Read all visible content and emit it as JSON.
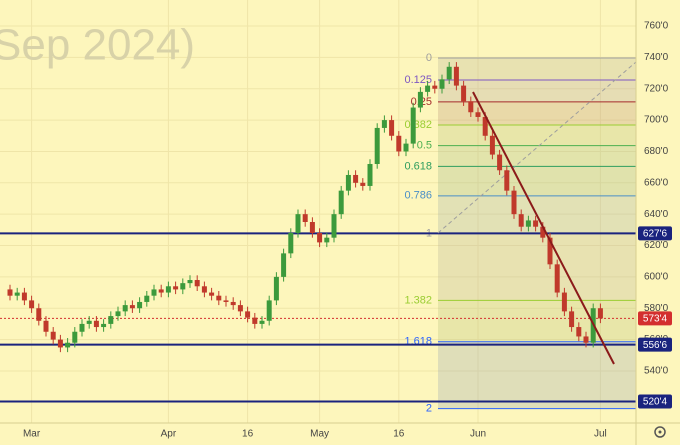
{
  "chart_data": {
    "type": "candlestick",
    "watermark": "Sep 2024)",
    "background": "#fdf6bc",
    "up_color": "#3c9a3c",
    "down_color": "#c0392b",
    "grid": true,
    "categories": [
      null,
      null,
      null,
      "Mar",
      null,
      null,
      null,
      null,
      null,
      null,
      null,
      null,
      null,
      null,
      null,
      null,
      null,
      null,
      null,
      null,
      null,
      null,
      "Apr",
      null,
      null,
      null,
      null,
      null,
      null,
      null,
      null,
      null,
      null,
      "16",
      null,
      null,
      null,
      null,
      null,
      null,
      null,
      null,
      null,
      "May",
      null,
      null,
      null,
      null,
      null,
      null,
      null,
      null,
      null,
      null,
      "16",
      null,
      null,
      null,
      null,
      null,
      null,
      null,
      null,
      null,
      null,
      "Jun",
      null,
      null,
      null,
      null,
      null,
      null,
      null,
      null,
      null,
      null,
      null,
      null,
      null,
      null,
      null,
      null,
      "Jul"
    ],
    "open": [
      592,
      588,
      590,
      585,
      580,
      572,
      565,
      560,
      555,
      558,
      565,
      570,
      572,
      568,
      570,
      575,
      578,
      582,
      580,
      584,
      588,
      592,
      590,
      594,
      592,
      596,
      598,
      594,
      590,
      588,
      585,
      584,
      582,
      578,
      574,
      570,
      572,
      585,
      600,
      615,
      628,
      640,
      635,
      628,
      622,
      625,
      640,
      655,
      665,
      660,
      658,
      672,
      695,
      700,
      690,
      680,
      685,
      708,
      718,
      722,
      720,
      726,
      734,
      722,
      712,
      705,
      702,
      690,
      678,
      668,
      655,
      640,
      632,
      636,
      632,
      625,
      608,
      590,
      578,
      568,
      562,
      558,
      580
    ],
    "high": [
      595,
      593,
      593,
      588,
      583,
      575,
      568,
      563,
      561,
      568,
      573,
      575,
      575,
      573,
      578,
      581,
      585,
      585,
      587,
      591,
      595,
      595,
      597,
      597,
      599,
      601,
      601,
      597,
      593,
      591,
      588,
      587,
      585,
      581,
      577,
      575,
      588,
      603,
      618,
      631,
      643,
      643,
      638,
      631,
      628,
      643,
      658,
      668,
      668,
      663,
      675,
      698,
      703,
      703,
      693,
      688,
      711,
      721,
      725,
      725,
      729,
      737,
      737,
      725,
      715,
      708,
      705,
      693,
      681,
      671,
      658,
      643,
      639,
      639,
      635,
      628,
      611,
      593,
      581,
      571,
      565,
      583,
      583
    ],
    "low": [
      585,
      585,
      582,
      577,
      569,
      562,
      557,
      552,
      552,
      555,
      562,
      567,
      565,
      565,
      567,
      572,
      575,
      577,
      577,
      581,
      585,
      587,
      587,
      589,
      589,
      593,
      591,
      587,
      585,
      582,
      581,
      579,
      575,
      571,
      567,
      567,
      569,
      582,
      597,
      612,
      625,
      632,
      625,
      619,
      619,
      622,
      637,
      652,
      657,
      655,
      655,
      669,
      692,
      687,
      677,
      677,
      682,
      705,
      715,
      717,
      717,
      723,
      719,
      709,
      702,
      699,
      687,
      675,
      665,
      652,
      637,
      629,
      629,
      629,
      622,
      605,
      587,
      575,
      565,
      559,
      555,
      555,
      570.5
    ],
    "close": [
      588,
      590,
      585,
      580,
      572,
      565,
      560,
      555,
      558,
      565,
      570,
      572,
      568,
      570,
      575,
      578,
      582,
      580,
      584,
      588,
      592,
      590,
      594,
      592,
      596,
      598,
      594,
      590,
      588,
      585,
      584,
      582,
      578,
      574,
      570,
      572,
      585,
      600,
      615,
      628,
      640,
      635,
      628,
      622,
      625,
      640,
      655,
      665,
      660,
      658,
      672,
      695,
      700,
      690,
      680,
      685,
      708,
      718,
      722,
      720,
      726,
      734,
      722,
      712,
      705,
      702,
      690,
      678,
      668,
      655,
      640,
      632,
      636,
      632,
      625,
      608,
      590,
      578,
      568,
      562,
      558,
      580,
      573.5
    ],
    "ylim": [
      506.8,
      776.6
    ],
    "yticks": [
      {
        "value": 540,
        "label": "540'0"
      },
      {
        "value": 560,
        "label": "560'0"
      },
      {
        "value": 580,
        "label": "580'0"
      },
      {
        "value": 600,
        "label": "600'0"
      },
      {
        "value": 620,
        "label": "620'0"
      },
      {
        "value": 640,
        "label": "640'0"
      },
      {
        "value": 660,
        "label": "660'0"
      },
      {
        "value": 680,
        "label": "680'0"
      },
      {
        "value": 700,
        "label": "700'0"
      },
      {
        "value": 720,
        "label": "720'0"
      },
      {
        "value": 740,
        "label": "740'0"
      },
      {
        "value": 760,
        "label": "760'0"
      }
    ],
    "fib_levels": [
      {
        "label": "0",
        "price": 739.6,
        "color": "#9e9e9e"
      },
      {
        "label": "0.125",
        "price": 725.6,
        "color": "#7e57c2"
      },
      {
        "label": "0.25",
        "price": 711.6,
        "color": "#a52a2a"
      },
      {
        "label": "0.382",
        "price": 696.9,
        "color": "#9acd32"
      },
      {
        "label": "0.5",
        "price": 683.7,
        "color": "#4caf50"
      },
      {
        "label": "0.618",
        "price": 670.5,
        "color": "#2e9d5e"
      },
      {
        "label": "0.786",
        "price": 651.7,
        "color": "#4a8fc7"
      },
      {
        "label": "1",
        "price": 627.75,
        "color": "#9e9e9e"
      },
      {
        "label": "1.382",
        "price": 585.0,
        "color": "#9acd32"
      },
      {
        "label": "1.618",
        "price": 558.6,
        "color": "#2962ff"
      },
      {
        "label": "2",
        "price": 516.0,
        "color": "#2962ff"
      }
    ],
    "price_lines": [
      {
        "value": 627.75,
        "label": "627'6",
        "color": "#1a237e",
        "style": "solid"
      },
      {
        "value": 573.5,
        "label": "573'4",
        "color": "#d32f2f",
        "style": "dotted"
      },
      {
        "value": 556.75,
        "label": "556'6",
        "color": "#1a237e",
        "style": "solid"
      },
      {
        "value": 520.5,
        "label": "520'4",
        "color": "#1a237e",
        "style": "solid"
      }
    ]
  }
}
